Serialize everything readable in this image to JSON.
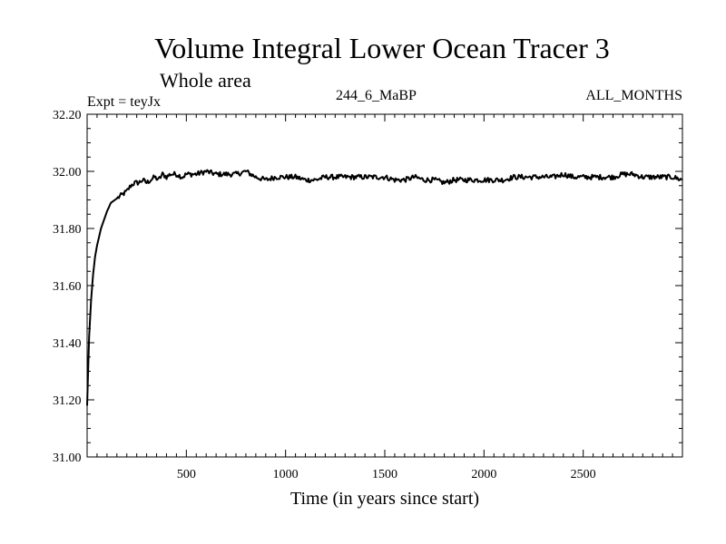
{
  "chart_data": {
    "type": "line",
    "title": "Volume Integral Lower Ocean Tracer 3",
    "subtitle": "Whole area",
    "experiment_label": "Expt = teyJx",
    "run_label": "244_6_MaBP",
    "months_label": "ALL_MONTHS",
    "xlabel": "Time (in years since start)",
    "ylabel": "",
    "xlim": [
      0,
      3000
    ],
    "ylim": [
      31.0,
      32.2
    ],
    "x_ticks": [
      500,
      1000,
      1500,
      2000,
      2500
    ],
    "x_tick_labels": [
      "500",
      "1000",
      "1500",
      "2000",
      "2500"
    ],
    "y_ticks": [
      31.0,
      31.2,
      31.4,
      31.6,
      31.8,
      32.0,
      32.2
    ],
    "y_tick_labels": [
      "31.00",
      "31.20",
      "31.40",
      "31.60",
      "31.80",
      "32.00",
      "32.20"
    ],
    "grid": false,
    "series": [
      {
        "name": "Tracer 3",
        "color": "#000000",
        "x": [
          0,
          5,
          10,
          20,
          30,
          40,
          50,
          60,
          70,
          80,
          100,
          120,
          140,
          160,
          180,
          200,
          220,
          240,
          260,
          280,
          300,
          320,
          340,
          360,
          380,
          400,
          420,
          450,
          480,
          500,
          550,
          600,
          650,
          700,
          750,
          800,
          850,
          900,
          950,
          1000,
          1050,
          1100,
          1150,
          1200,
          1250,
          1300,
          1350,
          1400,
          1450,
          1500,
          1550,
          1600,
          1650,
          1700,
          1750,
          1800,
          1850,
          1900,
          1950,
          2000,
          2050,
          2100,
          2150,
          2200,
          2250,
          2300,
          2350,
          2400,
          2450,
          2500,
          2550,
          2600,
          2650,
          2700,
          2750,
          2800,
          2850,
          2900,
          2950,
          3000
        ],
        "values": [
          31.18,
          31.3,
          31.42,
          31.55,
          31.64,
          31.7,
          31.74,
          31.77,
          31.8,
          31.82,
          31.86,
          31.89,
          31.9,
          31.91,
          31.92,
          31.93,
          31.95,
          31.96,
          31.96,
          31.97,
          31.96,
          31.97,
          31.98,
          31.97,
          31.99,
          31.98,
          31.99,
          31.99,
          31.98,
          31.99,
          31.99,
          32.0,
          31.99,
          31.99,
          31.99,
          32.0,
          31.98,
          31.97,
          31.98,
          31.98,
          31.98,
          31.97,
          31.97,
          31.98,
          31.98,
          31.98,
          31.98,
          31.98,
          31.98,
          31.98,
          31.97,
          31.97,
          31.98,
          31.97,
          31.97,
          31.96,
          31.97,
          31.97,
          31.97,
          31.97,
          31.97,
          31.97,
          31.98,
          31.98,
          31.98,
          31.98,
          31.98,
          31.99,
          31.98,
          31.98,
          31.98,
          31.98,
          31.98,
          31.99,
          31.99,
          31.98,
          31.98,
          31.98,
          31.98,
          31.97
        ]
      }
    ]
  }
}
